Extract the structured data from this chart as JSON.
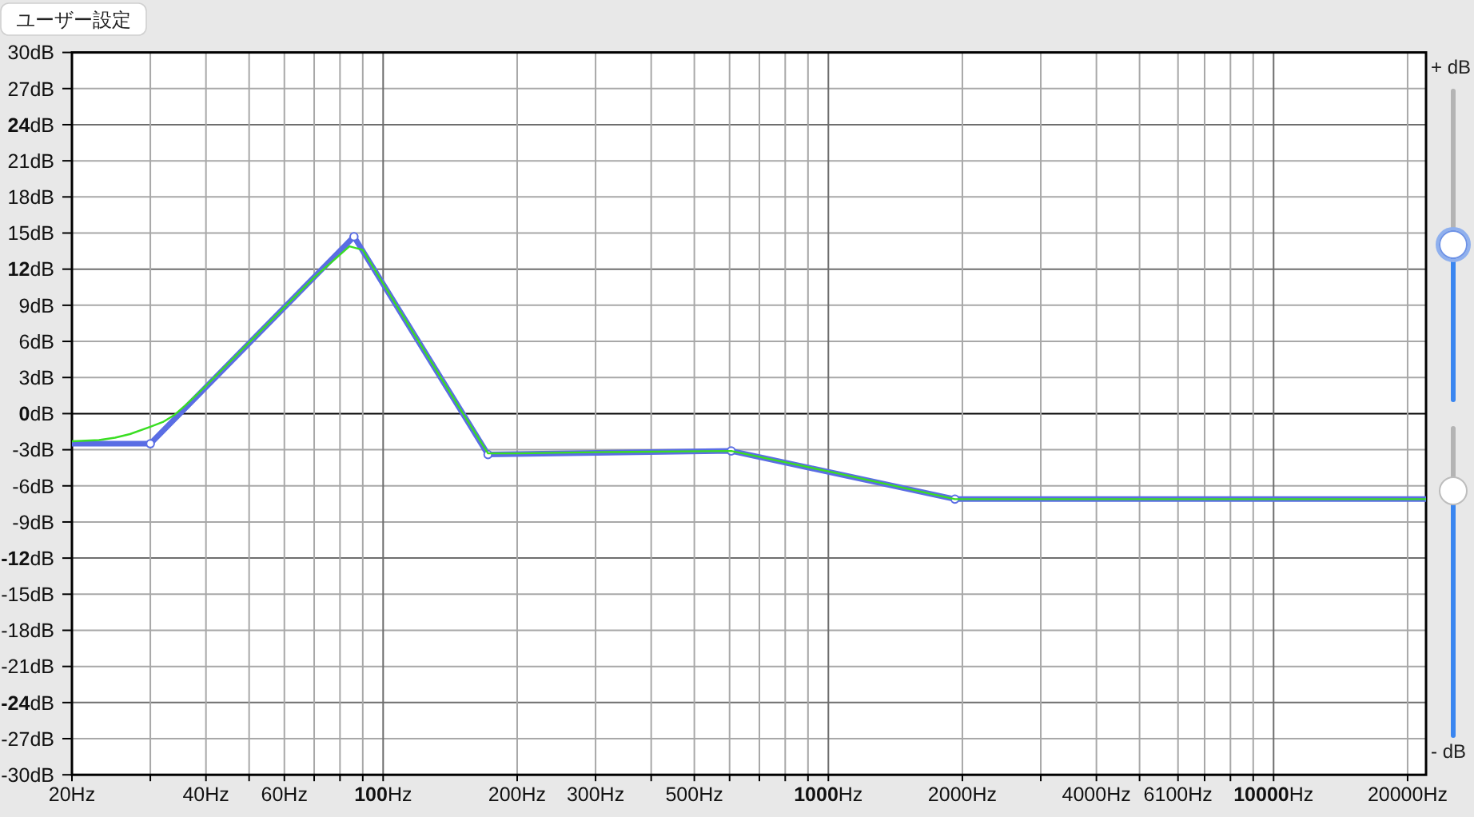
{
  "chart_data": {
    "type": "line",
    "series": [
      {
        "color": "#5a6de4",
        "marker": "circle",
        "x": [
          20,
          30,
          86,
          172,
          605,
          1924,
          22000
        ],
        "values": [
          -2.5,
          -2.5,
          14.7,
          -3.4,
          -3.1,
          -7.1,
          -7.1
        ]
      },
      {
        "color": "#3ade22",
        "marker": "none",
        "x": [
          20,
          23,
          25,
          27,
          30,
          32,
          34,
          36,
          40,
          50,
          70,
          80,
          84,
          90,
          100,
          150,
          172,
          200,
          300,
          605,
          1000,
          1924,
          22000
        ],
        "values": [
          -2.3,
          -2.2,
          -2,
          -1.7,
          -1.1,
          -0.7,
          -0.1,
          0.7,
          2.3,
          5.9,
          11.3,
          13.2,
          13.9,
          13.6,
          10.8,
          0.2,
          -3.3,
          -3.3,
          -3.2,
          -3.1,
          -4.8,
          -7.1,
          -7.1
        ]
      }
    ],
    "xlim": [
      20,
      22000
    ],
    "ylim": [
      -30,
      30
    ],
    "log": "x",
    "grid": true,
    "xticks": [
      {
        "value": 20,
        "label": "20Hz"
      },
      {
        "value": 30,
        "label": null
      },
      {
        "value": 40,
        "label": "40Hz"
      },
      {
        "value": 50,
        "label": null
      },
      {
        "value": 60,
        "label": "60Hz"
      },
      {
        "value": 70,
        "label": null
      },
      {
        "value": 80,
        "label": null
      },
      {
        "value": 90,
        "label": null
      },
      {
        "value": 100,
        "label": "100Hz"
      },
      {
        "value": 200,
        "label": "200Hz"
      },
      {
        "value": 300,
        "label": "300Hz"
      },
      {
        "value": 400,
        "label": null
      },
      {
        "value": 500,
        "label": "500Hz"
      },
      {
        "value": 600,
        "label": null
      },
      {
        "value": 700,
        "label": null
      },
      {
        "value": 800,
        "label": null
      },
      {
        "value": 900,
        "label": null
      },
      {
        "value": 1000,
        "label": "1000Hz"
      },
      {
        "value": 2000,
        "label": "2000Hz"
      },
      {
        "value": 3000,
        "label": null
      },
      {
        "value": 4000,
        "label": "4000Hz"
      },
      {
        "value": 5000,
        "label": null
      },
      {
        "value": 6100,
        "label": "6100Hz"
      },
      {
        "value": 7000,
        "label": null
      },
      {
        "value": 8000,
        "label": null
      },
      {
        "value": 9000,
        "label": null
      },
      {
        "value": 10000,
        "label": "10000Hz"
      },
      {
        "value": 20000,
        "label": "20000Hz"
      }
    ],
    "yticks": [
      {
        "value": -30,
        "label": "-30dB"
      },
      {
        "value": -27,
        "label": "-27dB"
      },
      {
        "value": -24,
        "label": "-24dB"
      },
      {
        "value": -21,
        "label": "-21dB"
      },
      {
        "value": -18,
        "label": "-18dB"
      },
      {
        "value": -15,
        "label": "-15dB"
      },
      {
        "value": -12,
        "label": "-12dB"
      },
      {
        "value": -9,
        "label": "-9dB"
      },
      {
        "value": -6,
        "label": "-6dB"
      },
      {
        "value": -3,
        "label": "-3dB"
      },
      {
        "value": 0,
        "label": "0dB"
      },
      {
        "value": 3,
        "label": "3dB"
      },
      {
        "value": 6,
        "label": "6dB"
      },
      {
        "value": 9,
        "label": "9dB"
      },
      {
        "value": 12,
        "label": "12dB"
      },
      {
        "value": 15,
        "label": "15dB"
      },
      {
        "value": 18,
        "label": "18dB"
      },
      {
        "value": 21,
        "label": "21dB"
      },
      {
        "value": 24,
        "label": "24dB"
      },
      {
        "value": 27,
        "label": "27dB"
      },
      {
        "value": 30,
        "label": "30dB"
      }
    ],
    "annotations": [
      "ユーザー設定",
      "+ dB",
      "- dB"
    ]
  }
}
